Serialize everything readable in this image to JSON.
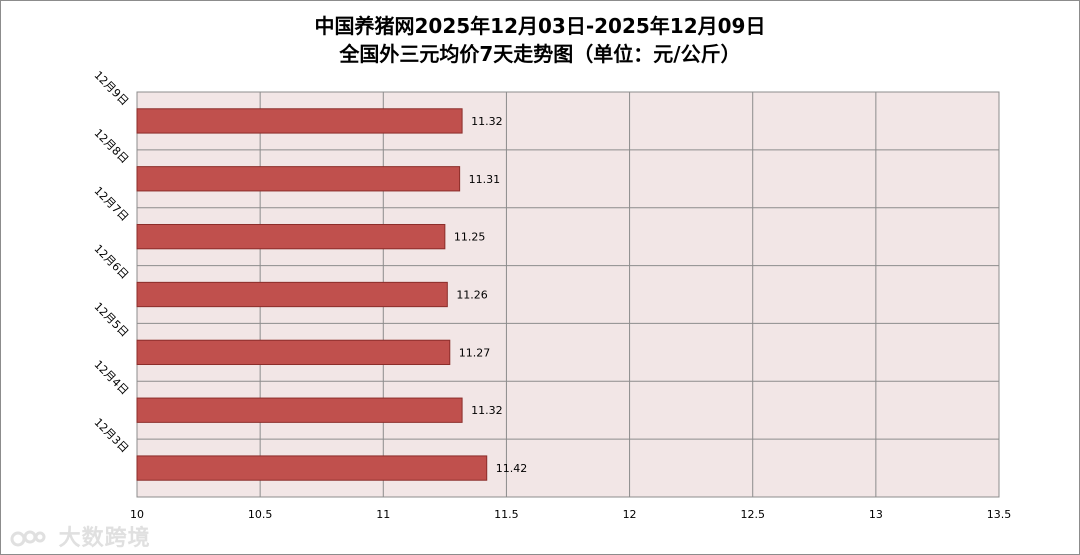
{
  "chart_data": {
    "type": "bar",
    "orientation": "horizontal",
    "title_line1": "中国养猪网2025年12月03日-2025年12月09日",
    "title_line2": "全国外三元均价7天走势图（单位：元/公斤）",
    "categories": [
      "12月9日",
      "12月8日",
      "12月7日",
      "12月6日",
      "12月5日",
      "12月4日",
      "12月3日"
    ],
    "values": [
      11.32,
      11.31,
      11.25,
      11.26,
      11.27,
      11.32,
      11.42
    ],
    "value_labels": [
      "11.32",
      "11.31",
      "11.25",
      "11.26",
      "11.27",
      "11.32",
      "11.42"
    ],
    "xlim": [
      10,
      13.5
    ],
    "x_ticks": [
      10,
      10.5,
      11,
      11.5,
      12,
      12.5,
      13,
      13.5
    ],
    "x_tick_labels": [
      "10",
      "10.5",
      "11",
      "11.5",
      "12",
      "12.5",
      "13",
      "13.5"
    ],
    "grid": true,
    "legend": "none"
  },
  "colors": {
    "bar_fill": "#c0504d",
    "bar_stroke": "#8b2d2a",
    "plot_background": "#f2e6e6",
    "grid": "#8c8c8c"
  },
  "watermark": {
    "logo_icon": "watermark-logo-icon",
    "text": "大数跨境"
  }
}
